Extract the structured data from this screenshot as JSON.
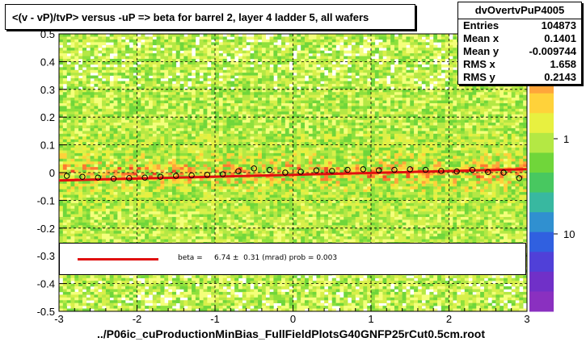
{
  "title": "<(v - vP)/tvP> versus  -uP => beta for barrel 2, layer 4 ladder 5, all wafers",
  "xlabel": "../P06ic_cuProductionMinBias_FullFieldPlotsG40GNFP25rCut0.5cm.root",
  "stats": {
    "name": "dvOvertvPuP4005",
    "rows": [
      {
        "label": "Entries",
        "value": "104873"
      },
      {
        "label": "Mean x",
        "value": "0.1401"
      },
      {
        "label": "Mean y",
        "value": "-0.009744"
      },
      {
        "label": "RMS x",
        "value": "1.658"
      },
      {
        "label": "RMS y",
        "value": "0.2143"
      }
    ]
  },
  "legend": {
    "text": "beta =     6.74 ±  0.31 (mrad) prob = 0.003"
  },
  "colors": {
    "fit_line": "#e01010",
    "background": "#ffffff"
  },
  "chart_data": {
    "type": "heatmap",
    "title": "<(v - vP)/tvP> versus  -uP => beta for barrel 2, layer 4 ladder 5, all wafers",
    "xlim": [
      -3,
      3
    ],
    "ylim": [
      -0.5,
      0.5
    ],
    "x_ticks": [
      -3,
      -2,
      -1,
      0,
      1,
      2,
      3
    ],
    "y_ticks": [
      -0.5,
      -0.4,
      -0.3,
      -0.2,
      -0.1,
      0,
      0.1,
      0.2,
      0.3,
      0.4,
      0.5
    ],
    "y_tick_labels": [
      "-0.5",
      "-0.4",
      "-0.3",
      "-0.2",
      "-0.1",
      "0",
      "0.1",
      "0.2",
      "0.3",
      "0.4",
      "0.5"
    ],
    "x_tick_labels": [
      "-3",
      "-2",
      "-1",
      "0",
      "1",
      "2",
      "3"
    ],
    "colorbar_labels": [
      "1",
      "10"
    ],
    "colorbar_label_values": [
      1,
      0.1
    ],
    "grid": true,
    "profile_points": {
      "x": [
        -2.9,
        -2.7,
        -2.5,
        -2.3,
        -2.1,
        -1.9,
        -1.7,
        -1.5,
        -1.3,
        -1.1,
        -0.9,
        -0.7,
        -0.5,
        -0.3,
        -0.1,
        0.1,
        0.3,
        0.5,
        0.7,
        0.9,
        1.1,
        1.3,
        1.5,
        1.7,
        1.9,
        2.1,
        2.3,
        2.5,
        2.7,
        2.9
      ],
      "y": [
        -0.012,
        -0.015,
        -0.018,
        -0.022,
        -0.02,
        -0.018,
        -0.015,
        -0.012,
        -0.01,
        -0.008,
        -0.006,
        0.005,
        0.015,
        0.01,
        0.0,
        0.003,
        0.008,
        0.006,
        0.01,
        0.012,
        0.008,
        0.01,
        0.012,
        0.01,
        0.006,
        0.004,
        0.01,
        0.002,
        0.0,
        -0.02
      ]
    },
    "fit": {
      "slope": 0.00674,
      "intercept": -0.008
    }
  }
}
